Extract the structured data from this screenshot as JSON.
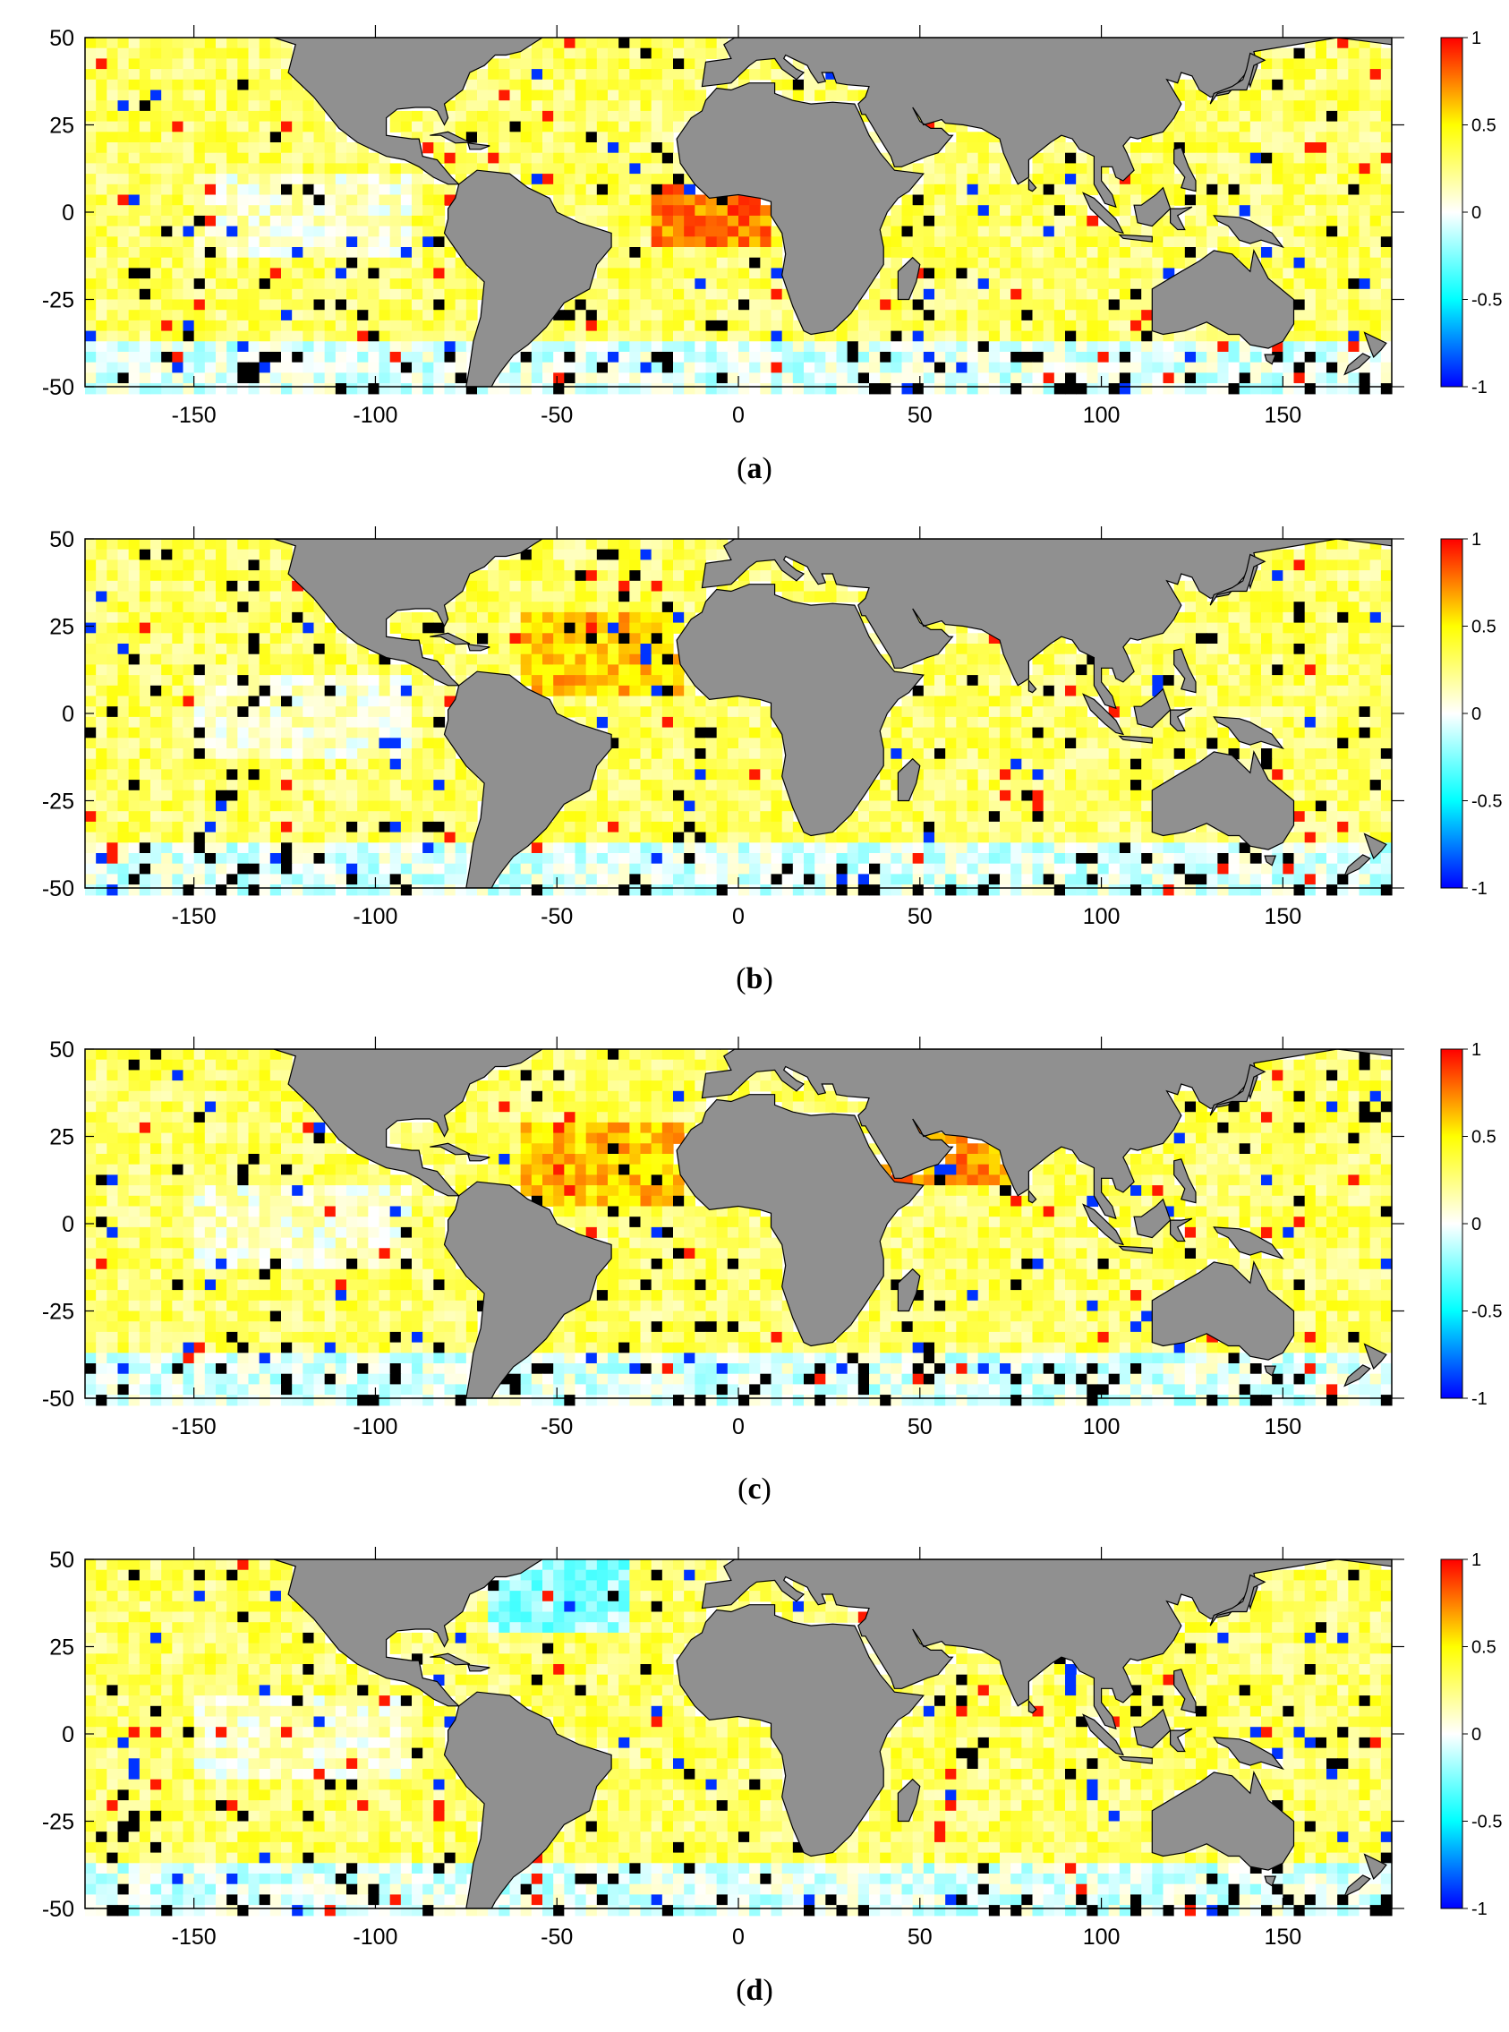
{
  "figure": {
    "panels": [
      {
        "id": "a",
        "caption_open": "(",
        "caption_letter": "a",
        "caption_close": ")"
      },
      {
        "id": "b",
        "caption_open": "(",
        "caption_letter": "b",
        "caption_close": ")"
      },
      {
        "id": "c",
        "caption_open": "(",
        "caption_letter": "c",
        "caption_close": ")"
      },
      {
        "id": "d",
        "caption_open": "(",
        "caption_letter": "d",
        "caption_close": ")"
      }
    ]
  },
  "chart_data": [
    {
      "type": "heatmap",
      "panel": "a",
      "xlim": [
        -180,
        180
      ],
      "ylim": [
        -50,
        50
      ],
      "x_ticks": [
        -150,
        -100,
        -50,
        0,
        50,
        100,
        150
      ],
      "x_tick_labels": [
        "-150",
        "-100",
        "-50",
        "0",
        "50",
        "100",
        "150"
      ],
      "y_ticks": [
        50,
        25,
        0,
        -25,
        -50
      ],
      "y_tick_labels": [
        "50",
        "25",
        "0",
        "-25",
        "-50"
      ],
      "colorbar": {
        "range": [
          -1,
          1
        ],
        "ticks": [
          1,
          0.5,
          0,
          -0.5,
          -1
        ],
        "tick_labels": [
          "1",
          "0.5",
          "0",
          "-0.5",
          "-1"
        ],
        "colors": [
          "#0000ff",
          "#00ffff",
          "#ffffff",
          "#ffff00",
          "#ff0000"
        ]
      },
      "land_color": "#909090"
    },
    {
      "type": "heatmap",
      "panel": "b",
      "xlim": [
        -180,
        180
      ],
      "ylim": [
        -50,
        50
      ],
      "x_ticks": [
        -150,
        -100,
        -50,
        0,
        50,
        100,
        150
      ],
      "x_tick_labels": [
        "-150",
        "-100",
        "-50",
        "0",
        "50",
        "100",
        "150"
      ],
      "y_ticks": [
        50,
        25,
        0,
        -25,
        -50
      ],
      "y_tick_labels": [
        "50",
        "25",
        "0",
        "-25",
        "-50"
      ],
      "colorbar": {
        "range": [
          -1,
          1
        ],
        "ticks": [
          1,
          0.5,
          0,
          -0.5,
          -1
        ],
        "tick_labels": [
          "1",
          "0.5",
          "0",
          "-0.5",
          "-1"
        ],
        "colors": [
          "#0000ff",
          "#00ffff",
          "#ffffff",
          "#ffff00",
          "#ff0000"
        ]
      },
      "land_color": "#909090"
    },
    {
      "type": "heatmap",
      "panel": "c",
      "xlim": [
        -180,
        180
      ],
      "ylim": [
        -50,
        50
      ],
      "x_ticks": [
        -150,
        -100,
        -50,
        0,
        50,
        100,
        150
      ],
      "x_tick_labels": [
        "-150",
        "-100",
        "-50",
        "0",
        "50",
        "100",
        "150"
      ],
      "y_ticks": [
        50,
        25,
        0,
        -25,
        -50
      ],
      "y_tick_labels": [
        "50",
        "25",
        "0",
        "-25",
        "-50"
      ],
      "colorbar": {
        "range": [
          -1,
          1
        ],
        "ticks": [
          1,
          0.5,
          0,
          -0.5,
          -1
        ],
        "tick_labels": [
          "1",
          "0.5",
          "0",
          "-0.5",
          "-1"
        ],
        "colors": [
          "#0000ff",
          "#00ffff",
          "#ffffff",
          "#ffff00",
          "#ff0000"
        ]
      },
      "land_color": "#909090"
    },
    {
      "type": "heatmap",
      "panel": "d",
      "xlim": [
        -180,
        180
      ],
      "ylim": [
        -50,
        50
      ],
      "x_ticks": [
        -150,
        -100,
        -50,
        0,
        50,
        100,
        150
      ],
      "x_tick_labels": [
        "-150",
        "-100",
        "-50",
        "0",
        "50",
        "100",
        "150"
      ],
      "y_ticks": [
        50,
        25,
        0,
        -25,
        -50
      ],
      "y_tick_labels": [
        "50",
        "25",
        "0",
        "-25",
        "-50"
      ],
      "colorbar": {
        "range": [
          -1,
          1
        ],
        "ticks": [
          1,
          0.5,
          0,
          -0.5,
          -1
        ],
        "tick_labels": [
          "1",
          "0.5",
          "0",
          "-0.5",
          "-1"
        ],
        "colors": [
          "#0000ff",
          "#00ffff",
          "#ffffff",
          "#ffff00",
          "#ff0000"
        ]
      },
      "land_color": "#909090"
    }
  ]
}
